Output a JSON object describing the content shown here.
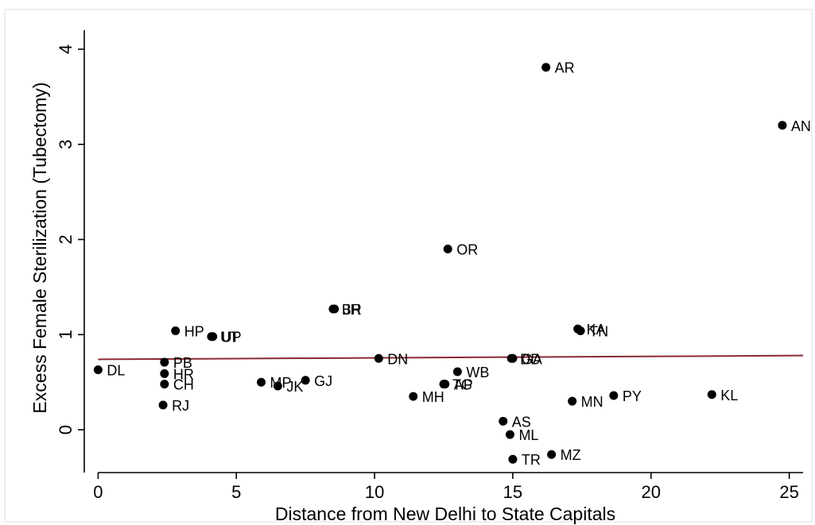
{
  "chart_data": {
    "type": "scatter",
    "title": "",
    "xlabel": "Distance from New Delhi to State Capitals",
    "ylabel": "Excess Female Sterilization (Tubectomy)",
    "xlim": [
      -0.5,
      25.5
    ],
    "ylim": [
      -0.45,
      4.2
    ],
    "xticks": [
      "0",
      "5",
      "10",
      "15",
      "20",
      "25"
    ],
    "yticks": [
      "0",
      "1",
      "2",
      "3",
      "4"
    ],
    "grid": false,
    "legend": "none",
    "colors": {
      "points": "#000000",
      "fit_line": "#8b2a35"
    },
    "points": [
      {
        "label": "DL",
        "x": 0.0,
        "y": 0.63
      },
      {
        "label": "PB",
        "x": 2.4,
        "y": 0.71
      },
      {
        "label": "HR",
        "x": 2.4,
        "y": 0.59
      },
      {
        "label": "CH",
        "x": 2.4,
        "y": 0.48
      },
      {
        "label": "RJ",
        "x": 2.35,
        "y": 0.26
      },
      {
        "label": "HP",
        "x": 2.8,
        "y": 1.04
      },
      {
        "label": "UT",
        "x": 4.1,
        "y": 0.98
      },
      {
        "label": "UP",
        "x": 4.15,
        "y": 0.98
      },
      {
        "label": "MP",
        "x": 5.9,
        "y": 0.5
      },
      {
        "label": "JK",
        "x": 6.5,
        "y": 0.46
      },
      {
        "label": "GJ",
        "x": 7.5,
        "y": 0.52
      },
      {
        "label": "BR",
        "x": 8.5,
        "y": 1.27
      },
      {
        "label": "JH",
        "x": 8.55,
        "y": 1.27
      },
      {
        "label": "DN",
        "x": 10.15,
        "y": 0.75
      },
      {
        "label": "MH",
        "x": 11.4,
        "y": 0.35
      },
      {
        "label": "TG",
        "x": 12.5,
        "y": 0.48
      },
      {
        "label": "AP",
        "x": 12.55,
        "y": 0.48
      },
      {
        "label": "OR",
        "x": 12.65,
        "y": 1.9
      },
      {
        "label": "WB",
        "x": 13.0,
        "y": 0.61
      },
      {
        "label": "AS",
        "x": 14.65,
        "y": 0.09
      },
      {
        "label": "ML",
        "x": 14.9,
        "y": -0.05
      },
      {
        "label": "DD",
        "x": 14.95,
        "y": 0.75
      },
      {
        "label": "GA",
        "x": 15.0,
        "y": 0.75
      },
      {
        "label": "TR",
        "x": 15.0,
        "y": -0.31
      },
      {
        "label": "AR",
        "x": 16.2,
        "y": 3.81
      },
      {
        "label": "MZ",
        "x": 16.4,
        "y": -0.26
      },
      {
        "label": "MN",
        "x": 17.15,
        "y": 0.3
      },
      {
        "label": "KA",
        "x": 17.35,
        "y": 1.06
      },
      {
        "label": "TN",
        "x": 17.45,
        "y": 1.04
      },
      {
        "label": "PY",
        "x": 18.65,
        "y": 0.36
      },
      {
        "label": "KL",
        "x": 22.2,
        "y": 0.37
      },
      {
        "label": "AN",
        "x": 24.75,
        "y": 3.2
      }
    ],
    "fit_line": {
      "x": [
        0,
        25.5
      ],
      "y": [
        0.74,
        0.78
      ]
    }
  }
}
